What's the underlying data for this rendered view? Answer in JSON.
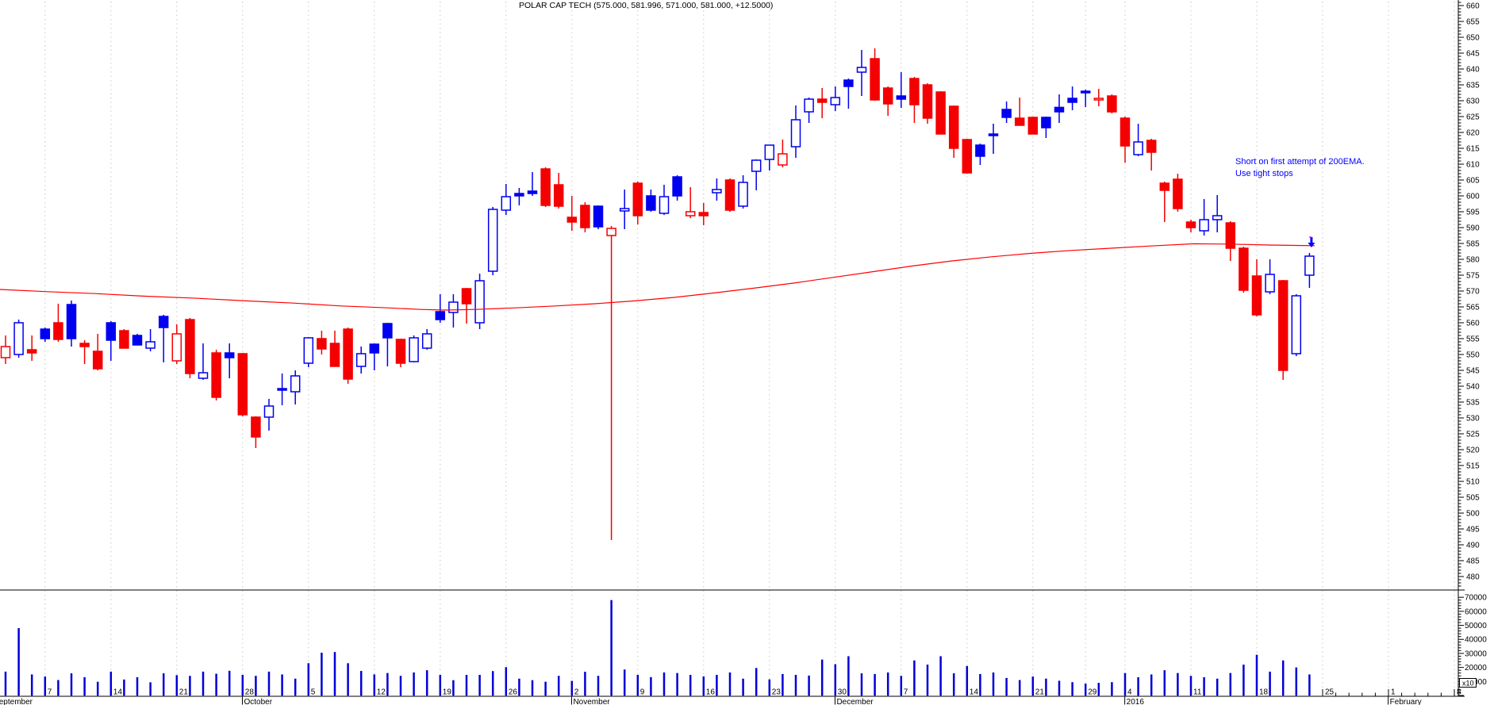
{
  "title": "POLAR CAP TECH (575.000, 581.996, 571.000, 581.000, +12.5000)",
  "annotation": {
    "line1": "Short on first attempt of 200EMA.",
    "line2": "Use tight stops"
  },
  "chart_data": {
    "type": "candlestick",
    "symbol": "POLAR CAP TECH",
    "last_quote": {
      "open": 575.0,
      "high": 581.996,
      "low": 571.0,
      "close": 581.0,
      "change": "+12.5000"
    },
    "legend_position": "top-center",
    "grid": "weekly-dashed-vertical",
    "price_axis": {
      "side": "right",
      "min": 480,
      "max": 660,
      "step": 5,
      "minor_step": 1
    },
    "volume_axis": {
      "side": "right",
      "min": 0,
      "max": 70000,
      "step": 10000,
      "minor_step": 2000,
      "multiplier": "x10"
    },
    "x_axis": {
      "months": [
        {
          "label": "September",
          "i": -0.9
        },
        {
          "label": "October",
          "i": 18.1
        },
        {
          "label": "November",
          "i": 43.1
        },
        {
          "label": "December",
          "i": 63.1
        },
        {
          "label": "2016",
          "i": 85.1
        },
        {
          "label": "February",
          "i": 105.1
        }
      ],
      "weeks": [
        {
          "i": 3,
          "d": "7"
        },
        {
          "i": 8,
          "d": "14"
        },
        {
          "i": 13,
          "d": "21"
        },
        {
          "i": 18,
          "d": "28"
        },
        {
          "i": 23,
          "d": "5"
        },
        {
          "i": 28,
          "d": "12"
        },
        {
          "i": 33,
          "d": "19"
        },
        {
          "i": 38,
          "d": "26"
        },
        {
          "i": 43,
          "d": "2"
        },
        {
          "i": 48,
          "d": "9"
        },
        {
          "i": 53,
          "d": "16"
        },
        {
          "i": 58,
          "d": "23"
        },
        {
          "i": 63,
          "d": "30"
        },
        {
          "i": 68,
          "d": "7"
        },
        {
          "i": 73,
          "d": "14"
        },
        {
          "i": 78,
          "d": "21"
        },
        {
          "i": 82,
          "d": "29"
        },
        {
          "i": 85,
          "d": "4"
        },
        {
          "i": 90,
          "d": "11"
        },
        {
          "i": 95,
          "d": "18"
        },
        {
          "i": 100,
          "d": "25"
        },
        {
          "i": 105,
          "d": "1"
        },
        {
          "i": 110,
          "d": "8"
        }
      ],
      "total_slots": 111
    },
    "overlays": [
      {
        "name": "200EMA",
        "color": "#ff0000",
        "points": [
          [
            0,
            570.5
          ],
          [
            60,
            569.8
          ],
          [
            120,
            569.2
          ],
          [
            180,
            568.4
          ],
          [
            250,
            567.7
          ],
          [
            310,
            566.9
          ],
          [
            370,
            566.2
          ],
          [
            430,
            565.3
          ],
          [
            480,
            564.8
          ],
          [
            530,
            564.2
          ],
          [
            560,
            564.0
          ],
          [
            600,
            564.2
          ],
          [
            650,
            564.7
          ],
          [
            700,
            565.3
          ],
          [
            750,
            566.0
          ],
          [
            800,
            566.9
          ],
          [
            850,
            568.0
          ],
          [
            900,
            569.4
          ],
          [
            950,
            570.9
          ],
          [
            1000,
            572.5
          ],
          [
            1050,
            574.3
          ],
          [
            1100,
            576.1
          ],
          [
            1150,
            577.9
          ],
          [
            1200,
            579.5
          ],
          [
            1250,
            580.8
          ],
          [
            1300,
            581.9
          ],
          [
            1350,
            582.8
          ],
          [
            1400,
            583.5
          ],
          [
            1450,
            584.2
          ],
          [
            1505,
            584.9
          ],
          [
            1550,
            584.8
          ],
          [
            1600,
            584.5
          ],
          [
            1657,
            584.3
          ]
        ]
      }
    ],
    "signal_arrow": {
      "type": "down-arrow",
      "color": "#0000ff",
      "at_candle": 99
    },
    "colors": {
      "up": "#0000f0",
      "down": "#f40000",
      "volume": "#0000d8",
      "grid": "#c8c8c8",
      "ema": "#ff0000",
      "annotation": "#0000ff"
    },
    "initial_prev_close": 553,
    "candles": [
      [
        549,
        556,
        547,
        552.5,
        17000
      ],
      [
        550,
        561,
        549,
        560,
        48000
      ],
      [
        551.5,
        556,
        548,
        550.5,
        15000
      ],
      [
        558,
        558.5,
        554,
        555,
        13500
      ],
      [
        560,
        566,
        554,
        554.75,
        11000
      ],
      [
        565.75,
        567,
        552.5,
        555,
        15800
      ],
      [
        553.5,
        554.5,
        547,
        552.5,
        13000
      ],
      [
        551,
        556.5,
        545,
        545.5,
        9800
      ],
      [
        560,
        560.5,
        548,
        554.5,
        17000
      ],
      [
        557.5,
        558,
        552,
        552,
        11400
      ],
      [
        556,
        556.5,
        553,
        553,
        13000
      ],
      [
        552,
        558,
        551,
        554,
        9400
      ],
      [
        562,
        562.5,
        547.5,
        558.5,
        15800
      ],
      [
        548,
        559.5,
        547,
        556.5,
        14500
      ],
      [
        561,
        561.5,
        542.5,
        544,
        14000
      ],
      [
        542.5,
        553.5,
        542,
        544.25,
        17000
      ],
      [
        550.5,
        551.5,
        535.5,
        536.5,
        15500
      ],
      [
        550.5,
        553.5,
        542.5,
        549,
        17600
      ],
      [
        550.25,
        550.5,
        530.5,
        531,
        14700
      ],
      [
        530.25,
        530.5,
        520.5,
        524,
        14000
      ],
      [
        530.25,
        536,
        526,
        533.75,
        17000
      ],
      [
        539.25,
        544,
        534,
        539.25,
        15000
      ],
      [
        538.25,
        545,
        534.25,
        543.25,
        12000
      ],
      [
        547.25,
        555.5,
        546,
        555.25,
        23000
      ],
      [
        555,
        557.5,
        550,
        551.75,
        30500
      ],
      [
        553.5,
        557.5,
        546.25,
        546.25,
        31000
      ],
      [
        558,
        558.5,
        540.75,
        542.25,
        23000
      ],
      [
        546.25,
        552.5,
        544,
        550.25,
        17500
      ],
      [
        553.25,
        553.5,
        545,
        550.5,
        15000
      ],
      [
        559.75,
        560,
        546.25,
        555.25,
        16000
      ],
      [
        554.75,
        555,
        546,
        547.25,
        14000
      ],
      [
        547.75,
        556,
        547.5,
        555.25,
        16400
      ],
      [
        552,
        558,
        551.5,
        556.5,
        18000
      ],
      [
        563.5,
        569,
        560,
        561,
        14700
      ],
      [
        563.25,
        569,
        558.5,
        566.5,
        10900
      ],
      [
        570.75,
        571,
        559.75,
        566,
        14700
      ],
      [
        560,
        575.5,
        558,
        573.25,
        14700
      ],
      [
        576.25,
        596.5,
        575,
        595.75,
        17400
      ],
      [
        595.5,
        603.75,
        594,
        599.75,
        20200
      ],
      [
        600.75,
        602.5,
        597,
        600,
        12000
      ],
      [
        601.5,
        607.5,
        600,
        600.75,
        10900
      ],
      [
        608.5,
        609,
        596.5,
        597,
        9800
      ],
      [
        603.5,
        607.25,
        596,
        596.75,
        14000
      ],
      [
        593.25,
        600,
        589,
        591.75,
        10400
      ],
      [
        597,
        598,
        588.5,
        590,
        16900
      ],
      [
        596.75,
        597,
        589.5,
        590.25,
        14000
      ],
      [
        587.5,
        590.5,
        491.5,
        589.75,
        68000
      ],
      [
        595.25,
        602,
        589.5,
        596,
        18500
      ],
      [
        604,
        604.5,
        591,
        593.75,
        14700
      ],
      [
        600,
        602,
        595,
        595.5,
        13100
      ],
      [
        594.5,
        603.5,
        594,
        599.75,
        16400
      ],
      [
        606,
        606.5,
        598.5,
        600,
        16000
      ],
      [
        593.75,
        602.75,
        593,
        595,
        14700
      ],
      [
        594.75,
        597.75,
        590.75,
        593.75,
        13600
      ],
      [
        601,
        605.5,
        598.5,
        602,
        14700
      ],
      [
        605,
        605.5,
        595,
        595.5,
        16400
      ],
      [
        596.75,
        606.5,
        596,
        604.25,
        12000
      ],
      [
        607.75,
        611.5,
        601.75,
        611.25,
        19600
      ],
      [
        611.5,
        616,
        608,
        616,
        11500
      ],
      [
        609.75,
        617.75,
        609,
        613.25,
        15300
      ],
      [
        615.5,
        628.5,
        612,
        624,
        14700
      ],
      [
        626.5,
        631,
        623,
        630.5,
        14200
      ],
      [
        630.5,
        634,
        624.5,
        629.5,
        25600
      ],
      [
        628.75,
        634.5,
        626.75,
        631,
        22300
      ],
      [
        636.5,
        637,
        627.5,
        634.5,
        28000
      ],
      [
        639,
        646,
        631.5,
        640.5,
        15800
      ],
      [
        643.25,
        646.5,
        630,
        630.25,
        15300
      ],
      [
        634,
        634.5,
        625.25,
        629,
        16400
      ],
      [
        631.5,
        639,
        627.75,
        630.5,
        14000
      ],
      [
        637,
        637.5,
        623,
        628.75,
        25000
      ],
      [
        635,
        635.5,
        622.75,
        624.5,
        22000
      ],
      [
        632.75,
        633,
        619.5,
        619.5,
        28000
      ],
      [
        628.25,
        628.5,
        612,
        615,
        15800
      ],
      [
        617.75,
        618,
        607,
        607.25,
        21000
      ],
      [
        616,
        616.5,
        609.75,
        612.5,
        15300
      ],
      [
        619.5,
        622.75,
        613.25,
        619.5,
        16400
      ],
      [
        627.25,
        629.75,
        623,
        624.75,
        12500
      ],
      [
        624.5,
        631,
        622.25,
        622.25,
        11000
      ],
      [
        624.75,
        625,
        619.5,
        619.5,
        13500
      ],
      [
        624.75,
        625,
        618.25,
        621.5,
        12000
      ],
      [
        627.9,
        632,
        623,
        626.5,
        10500
      ],
      [
        630.75,
        634.5,
        627,
        629.5,
        9500
      ],
      [
        633,
        633.5,
        628,
        632.5,
        8500
      ],
      [
        630.5,
        633.75,
        628.25,
        630.75,
        9000
      ],
      [
        631.5,
        632,
        626,
        626.5,
        9500
      ],
      [
        624.5,
        625,
        610.5,
        615.75,
        16000
      ],
      [
        613,
        622.75,
        612.5,
        617,
        13000
      ],
      [
        617.5,
        618,
        608,
        613.75,
        15000
      ],
      [
        604,
        604.5,
        591.75,
        601.75,
        18000
      ],
      [
        605.25,
        607,
        595,
        596,
        16000
      ],
      [
        591.75,
        592.5,
        588.5,
        590,
        14000
      ],
      [
        589,
        599,
        587.5,
        592.5,
        13000
      ],
      [
        592.5,
        600.25,
        588.5,
        593.75,
        12000
      ],
      [
        591.5,
        592,
        579.5,
        583.5,
        16000
      ],
      [
        583.5,
        584,
        569.5,
        570.25,
        22000
      ],
      [
        574.75,
        580,
        562,
        562.5,
        29000
      ],
      [
        569.75,
        580,
        569,
        575.25,
        17000
      ],
      [
        573.25,
        573.5,
        542,
        545,
        25000
      ],
      [
        550.25,
        569,
        549.5,
        568.5,
        20000
      ],
      [
        575,
        582,
        571,
        581,
        15000
      ]
    ]
  }
}
